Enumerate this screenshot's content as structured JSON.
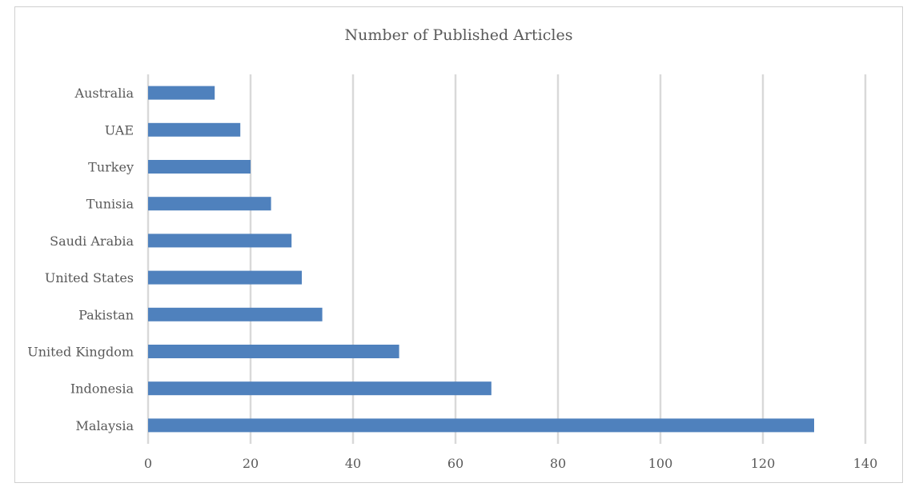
{
  "chart_data": {
    "type": "bar",
    "orientation": "horizontal",
    "title": "Number of Published Articles",
    "xlabel": "",
    "ylabel": "",
    "categories": [
      "Australia",
      "UAE",
      "Turkey",
      "Tunisia",
      "Saudi Arabia",
      "United States",
      "Pakistan",
      "United Kingdom",
      "Indonesia",
      "Malaysia"
    ],
    "values": [
      13,
      18,
      20,
      24,
      28,
      30,
      34,
      49,
      67,
      130
    ],
    "xlim": [
      0,
      140
    ],
    "xticks": [
      0,
      20,
      40,
      60,
      80,
      100,
      120,
      140
    ],
    "grid": true,
    "legend": "none",
    "bar_color": "#4f81bd",
    "grid_color": "#d9d9d9",
    "text_color": "#595959"
  }
}
